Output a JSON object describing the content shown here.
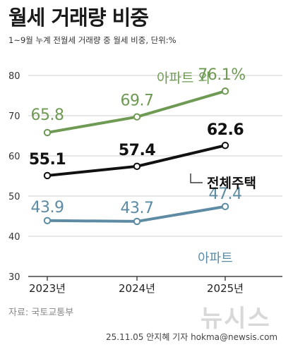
{
  "title": "월세 거래량 비중",
  "subtitle": "1~9월 누계 전월세 거래량 중 월세 비중, 단위:%",
  "source": "자료: 국토교통부",
  "logo": "뉴시스",
  "credit": "25.11.05 안지혜 기자 hokma@newsis.com",
  "chart_data": {
    "type": "line",
    "title": "월세 거래량 비중",
    "subtitle": "1~9월 누계 전월세 거래량 중 월세 비중, 단위:%",
    "categories": [
      "2023년",
      "2024년",
      "2025년"
    ],
    "ylim": [
      30,
      80
    ],
    "yticks": [
      "30",
      "40",
      "50",
      "60",
      "70",
      "80"
    ],
    "grid": true,
    "series": [
      {
        "name": "아파트 외",
        "values": [
          65.8,
          69.7,
          76.1
        ],
        "labels": [
          "65.8",
          "69.7",
          "76.1%"
        ],
        "color": "#6f9a54"
      },
      {
        "name": "전체주택",
        "values": [
          55.1,
          57.4,
          62.6
        ],
        "labels": [
          "55.1",
          "57.4",
          "62.6"
        ],
        "color": "#111111"
      },
      {
        "name": "아파트",
        "values": [
          43.9,
          43.7,
          47.4
        ],
        "labels": [
          "43.9",
          "43.7",
          "47.4"
        ],
        "color": "#5d8ba3"
      }
    ]
  }
}
